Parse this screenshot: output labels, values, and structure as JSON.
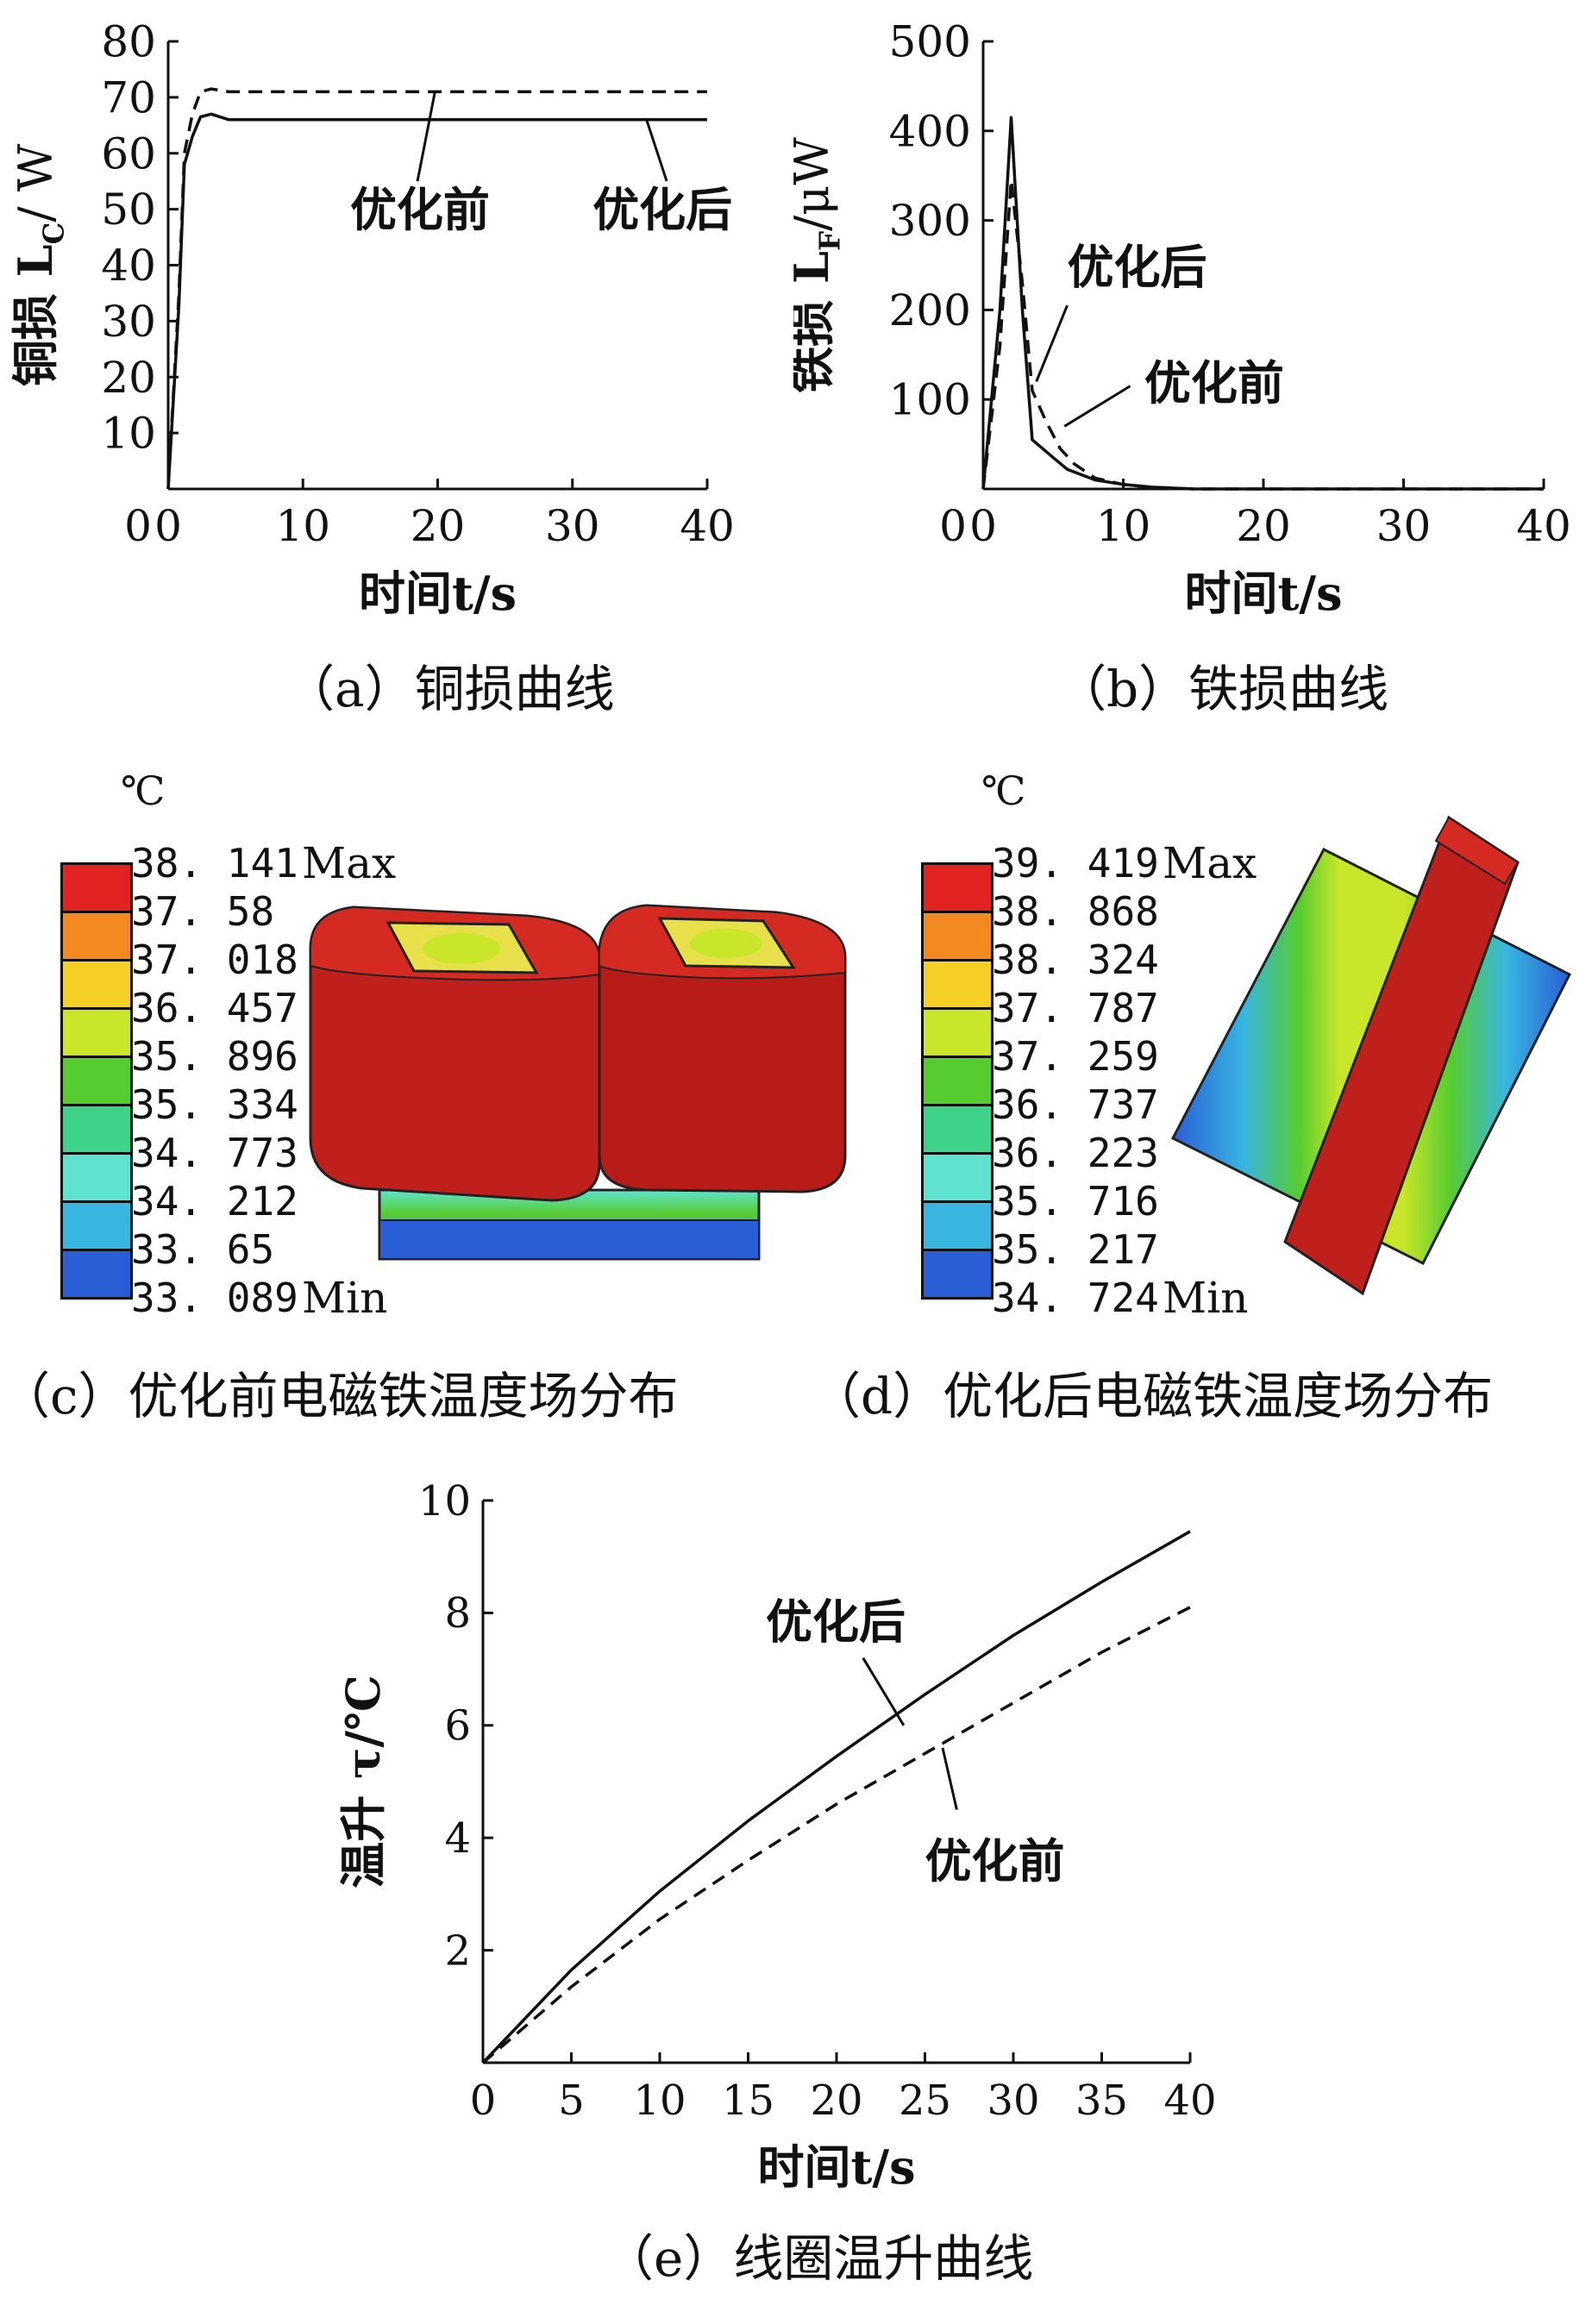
{
  "chart_data": [
    {
      "id": "a",
      "type": "line",
      "caption": "（a）铜损曲线",
      "ylabel": "铜损 L",
      "ylabel_sub": "C",
      "ylabel_unit": "/ W",
      "xlabel": "时间t/s",
      "xlim": [
        0,
        40
      ],
      "ylim": [
        0,
        80
      ],
      "xticks": [
        0,
        10,
        20,
        30,
        40
      ],
      "yticks": [
        10,
        20,
        30,
        40,
        50,
        60,
        70,
        80
      ],
      "series": [
        {
          "name": "优化前",
          "dash": true,
          "x": [
            0,
            0.8,
            1.2,
            1.8,
            2.4,
            3.2,
            4.5,
            6,
            10,
            20,
            30,
            40
          ],
          "y": [
            0,
            35,
            60,
            67,
            71,
            71.5,
            71,
            71,
            71,
            71,
            71,
            71
          ]
        },
        {
          "name": "优化后",
          "dash": false,
          "x": [
            0,
            0.8,
            1.2,
            1.8,
            2.4,
            3.2,
            4.5,
            6,
            10,
            20,
            30,
            40
          ],
          "y": [
            0,
            33,
            58,
            63,
            66.5,
            67,
            66,
            66,
            66,
            66,
            66,
            66
          ]
        }
      ],
      "annotations": [
        {
          "text": "优化前",
          "tx": 13.5,
          "ty": 47,
          "lx1": 19.8,
          "ly1": 71,
          "lx2": 18.5,
          "ly2": 55
        },
        {
          "text": "优化后",
          "tx": 31.5,
          "ty": 47,
          "lx1": 35.5,
          "ly1": 66,
          "lx2": 37,
          "ly2": 55
        }
      ]
    },
    {
      "id": "b",
      "type": "line",
      "caption": "（b）铁损曲线",
      "ylabel": "铁损 L",
      "ylabel_sub": "F",
      "ylabel_unit": "/μW",
      "xlabel": "时间t/s",
      "xlim": [
        0,
        40
      ],
      "ylim": [
        0,
        500
      ],
      "xticks": [
        0,
        10,
        20,
        30,
        40
      ],
      "yticks": [
        100,
        200,
        300,
        400,
        500
      ],
      "series": [
        {
          "name": "优化后",
          "dash": false,
          "x": [
            0,
            1.2,
            2,
            2.8,
            3.5,
            5,
            6,
            8,
            10,
            12,
            15,
            20,
            30,
            40
          ],
          "y": [
            0,
            200,
            415,
            200,
            55,
            35,
            22,
            10,
            5,
            2,
            0,
            0,
            0,
            0
          ]
        },
        {
          "name": "优化前",
          "dash": true,
          "x": [
            0,
            1.2,
            2,
            2.8,
            3.5,
            4.5,
            5.5,
            6.5,
            8,
            10,
            12,
            15,
            20,
            30,
            40
          ],
          "y": [
            0,
            160,
            345,
            230,
            110,
            75,
            45,
            28,
            12,
            5,
            2,
            0,
            0,
            0,
            0
          ]
        }
      ],
      "annotations": [
        {
          "text": "优化后",
          "tx": 6,
          "ty": 230,
          "lx1": 3.8,
          "ly1": 120,
          "lx2": 6,
          "ly2": 205
        },
        {
          "text": "优化前",
          "tx": 11.5,
          "ty": 100,
          "lx1": 5.8,
          "ly1": 70,
          "lx2": 10.5,
          "ly2": 115
        }
      ]
    },
    {
      "id": "e",
      "type": "line",
      "caption": "（e）线圈温升曲线",
      "ylabel": "温升 τ/℃",
      "xlabel": "时间t/s",
      "xlim": [
        0,
        40
      ],
      "ylim": [
        0,
        10
      ],
      "xticks": [
        0,
        5,
        10,
        15,
        20,
        25,
        30,
        35,
        40
      ],
      "yticks": [
        2,
        4,
        6,
        8,
        10
      ],
      "series": [
        {
          "name": "优化后",
          "dash": false,
          "x": [
            0,
            5,
            10,
            15,
            20,
            25,
            30,
            35,
            40
          ],
          "y": [
            0,
            1.65,
            3.05,
            4.3,
            5.45,
            6.55,
            7.6,
            8.55,
            9.45
          ]
        },
        {
          "name": "优化前",
          "dash": true,
          "x": [
            0,
            5,
            10,
            15,
            20,
            25,
            30,
            35,
            40
          ],
          "y": [
            0,
            1.35,
            2.55,
            3.6,
            4.6,
            5.5,
            6.4,
            7.3,
            8.1
          ]
        }
      ],
      "annotations": [
        {
          "text": "优化后",
          "tx": 16,
          "ty": 7.55,
          "lx1": 21.5,
          "ly1": 7.2,
          "lx2": 23.8,
          "ly2": 6.0
        },
        {
          "text": "优化前",
          "tx": 25,
          "ty": 3.3,
          "lx1": 26.8,
          "ly1": 4.5,
          "lx2": 26,
          "ly2": 5.6
        }
      ]
    }
  ],
  "panel_c": {
    "caption": "（c）优化前电磁铁温度场分布",
    "unit": "℃",
    "levels": [
      "38. 141",
      "37. 58",
      "37. 018",
      "36. 457",
      "35. 896",
      "35. 334",
      "34. 773",
      "34. 212",
      "33. 65",
      "33. 089"
    ],
    "max_label": "Max",
    "min_label": "Min"
  },
  "panel_d": {
    "caption": "（d）优化后电磁铁温度场分布",
    "unit": "℃",
    "levels": [
      "39. 419",
      "38. 868",
      "38. 324",
      "37. 787",
      "37. 259",
      "36. 737",
      "36. 223",
      "35. 716",
      "35. 217",
      "34. 724"
    ],
    "max_label": "Max",
    "min_label": "Min"
  },
  "colormap": [
    "#e32222",
    "#f28a20",
    "#f6cf24",
    "#c9e62a",
    "#57cc2e",
    "#3ed38b",
    "#5fe3cf",
    "#38b6e0",
    "#2a5ed6"
  ],
  "line_color": "#111111"
}
